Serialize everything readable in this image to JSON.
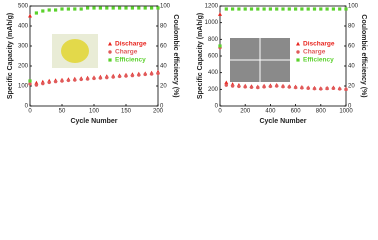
{
  "chart_data": [
    {
      "type": "scatter",
      "x_label": "Cycle Number",
      "y_label": "Specific Capacity (mAh/g)",
      "y2_label": "Coulombic efficiency (%)",
      "xlim": [
        0,
        200
      ],
      "xticks": [
        0,
        50,
        100,
        150,
        200
      ],
      "ylim": [
        0,
        500
      ],
      "yticks": [
        0,
        100,
        200,
        300,
        400,
        500
      ],
      "y2lim": [
        0,
        100
      ],
      "y2ticks": [
        0,
        20,
        40,
        60,
        80,
        100
      ],
      "legend": "center-right",
      "x": [
        0,
        10,
        20,
        30,
        40,
        50,
        60,
        70,
        80,
        90,
        100,
        110,
        120,
        130,
        140,
        150,
        160,
        170,
        180,
        190,
        200
      ],
      "series": [
        {
          "name": "Discharge",
          "color": "#e8251f",
          "marker": "triangle",
          "values": [
            450,
            115,
            120,
            125,
            128,
            130,
            133,
            135,
            138,
            140,
            142,
            145,
            148,
            150,
            152,
            155,
            158,
            160,
            162,
            165,
            170
          ]
        },
        {
          "name": "Charge",
          "color": "#e05a5a",
          "marker": "circle",
          "values": [
            110,
            105,
            112,
            118,
            122,
            125,
            128,
            130,
            133,
            135,
            138,
            140,
            142,
            145,
            148,
            150,
            152,
            155,
            158,
            160,
            163
          ]
        },
        {
          "name": "Efficiency",
          "color": "#5bd12c",
          "marker": "square",
          "axis": "y2",
          "values": [
            25,
            93,
            95,
            96,
            96,
            97,
            97,
            97,
            97,
            98,
            98,
            98,
            98,
            98,
            98,
            98,
            98,
            98,
            98,
            98,
            98
          ]
        }
      ]
    },
    {
      "type": "scatter",
      "x_label": "Cycle Number",
      "y_label": "Specific Capacity (mAh/g)",
      "y2_label": "Coulombic efficiency (%)",
      "xlim": [
        0,
        1000
      ],
      "xticks": [
        0,
        200,
        400,
        600,
        800,
        1000
      ],
      "ylim": [
        0,
        1200
      ],
      "yticks": [
        0,
        200,
        400,
        600,
        800,
        1000,
        1200
      ],
      "y2lim": [
        0,
        100
      ],
      "y2ticks": [
        0,
        20,
        40,
        60,
        80,
        100
      ],
      "legend": "center-right",
      "x": [
        0,
        50,
        100,
        150,
        200,
        250,
        300,
        350,
        400,
        450,
        500,
        550,
        600,
        650,
        700,
        750,
        800,
        850,
        900,
        950,
        1000
      ],
      "series": [
        {
          "name": "Discharge",
          "color": "#e8251f",
          "marker": "triangle",
          "values": [
            1100,
            280,
            260,
            250,
            240,
            235,
            230,
            240,
            245,
            250,
            240,
            235,
            230,
            225,
            220,
            215,
            210,
            215,
            220,
            210,
            205
          ]
        },
        {
          "name": "Charge",
          "color": "#e05a5a",
          "marker": "circle",
          "values": [
            700,
            250,
            240,
            235,
            230,
            225,
            222,
            230,
            235,
            240,
            232,
            228,
            222,
            218,
            213,
            208,
            205,
            210,
            212,
            205,
            200
          ]
        },
        {
          "name": "Efficiency",
          "color": "#5bd12c",
          "marker": "square",
          "axis": "y2",
          "values": [
            60,
            97,
            97,
            97,
            97,
            97,
            97,
            97,
            97,
            97,
            97,
            97,
            97,
            97,
            97,
            97,
            97,
            97,
            97,
            97,
            97
          ]
        }
      ]
    }
  ]
}
